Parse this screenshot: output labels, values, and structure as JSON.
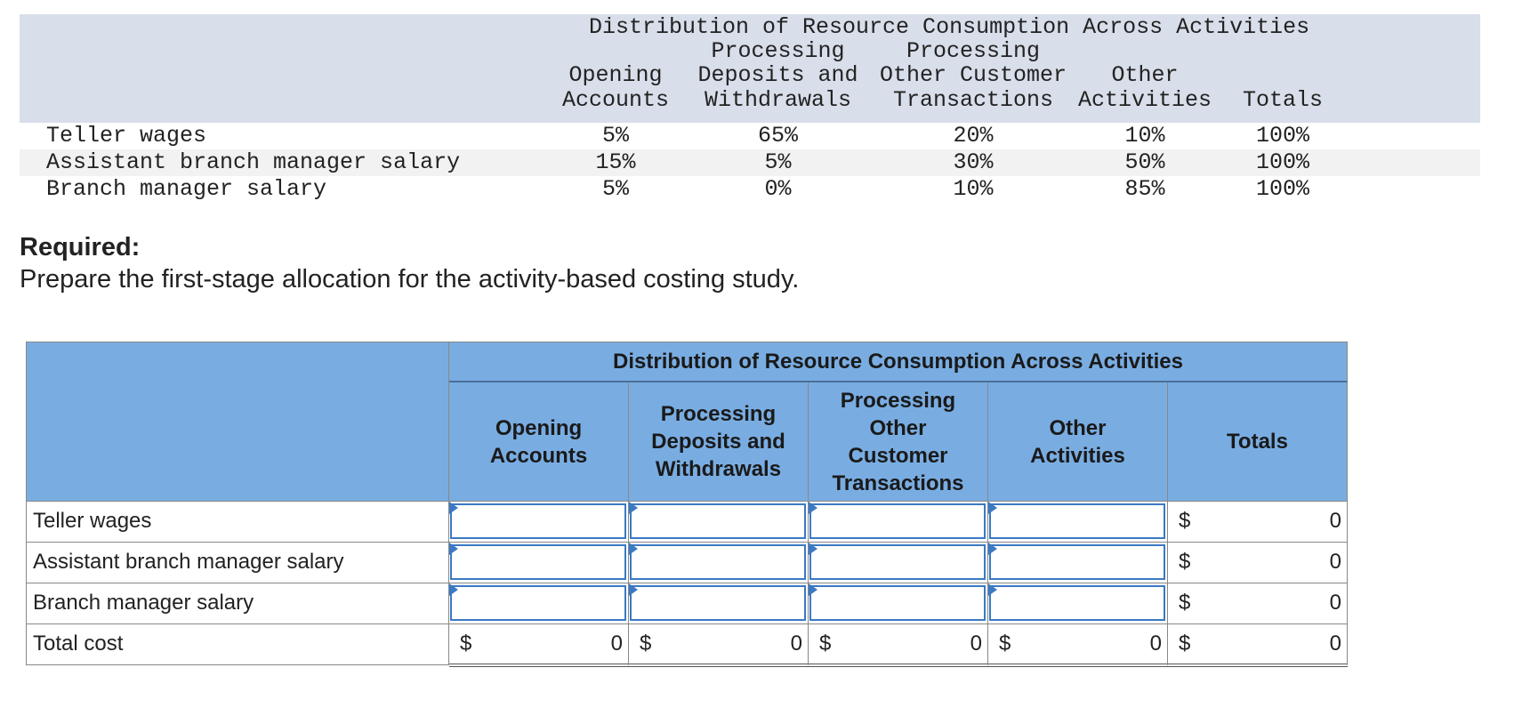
{
  "given_table": {
    "super_header": "Distribution of Resource Consumption Across Activities",
    "columns": [
      {
        "line1": "",
        "line2": "",
        "line3": "Opening",
        "line4": "Accounts"
      },
      {
        "line1": "",
        "line2": "Processing",
        "line3": "Deposits and",
        "line4": "Withdrawals"
      },
      {
        "line1": "",
        "line2": "Processing",
        "line3": "Other Customer",
        "line4": "Transactions"
      },
      {
        "line1": "",
        "line2": "",
        "line3": "Other",
        "line4": "Activities"
      },
      {
        "line1": "",
        "line2": "",
        "line3": "",
        "line4": "Totals"
      }
    ],
    "rows": [
      {
        "label": "Teller wages",
        "values": [
          "5%",
          "65%",
          "20%",
          "10%",
          "100%"
        ]
      },
      {
        "label": "Assistant branch manager salary",
        "values": [
          "15%",
          "5%",
          "30%",
          "50%",
          "100%"
        ]
      },
      {
        "label": "Branch manager salary",
        "values": [
          "5%",
          "0%",
          "10%",
          "85%",
          "100%"
        ]
      }
    ]
  },
  "required": {
    "title": "Required:",
    "text": "Prepare the first-stage allocation for the activity-based costing study."
  },
  "answer_table": {
    "super_header": "Distribution of Resource Consumption Across Activities",
    "columns": [
      "Opening\nAccounts",
      "Processing\nDeposits and\nWithdrawals",
      "Processing\nOther\nCustomer\nTransactions",
      "Other\nActivities",
      "Totals"
    ],
    "rows": [
      {
        "label": "Teller wages",
        "total_currency": "$",
        "total_value": "0"
      },
      {
        "label": "Assistant branch manager salary",
        "total_currency": "$",
        "total_value": "0"
      },
      {
        "label": "Branch manager salary",
        "total_currency": "$",
        "total_value": "0"
      }
    ],
    "total_row": {
      "label": "Total cost",
      "cells": [
        {
          "currency": "$",
          "value": "0"
        },
        {
          "currency": "$",
          "value": "0"
        },
        {
          "currency": "$",
          "value": "0"
        },
        {
          "currency": "$",
          "value": "0"
        },
        {
          "currency": "$",
          "value": "0"
        }
      ]
    }
  }
}
